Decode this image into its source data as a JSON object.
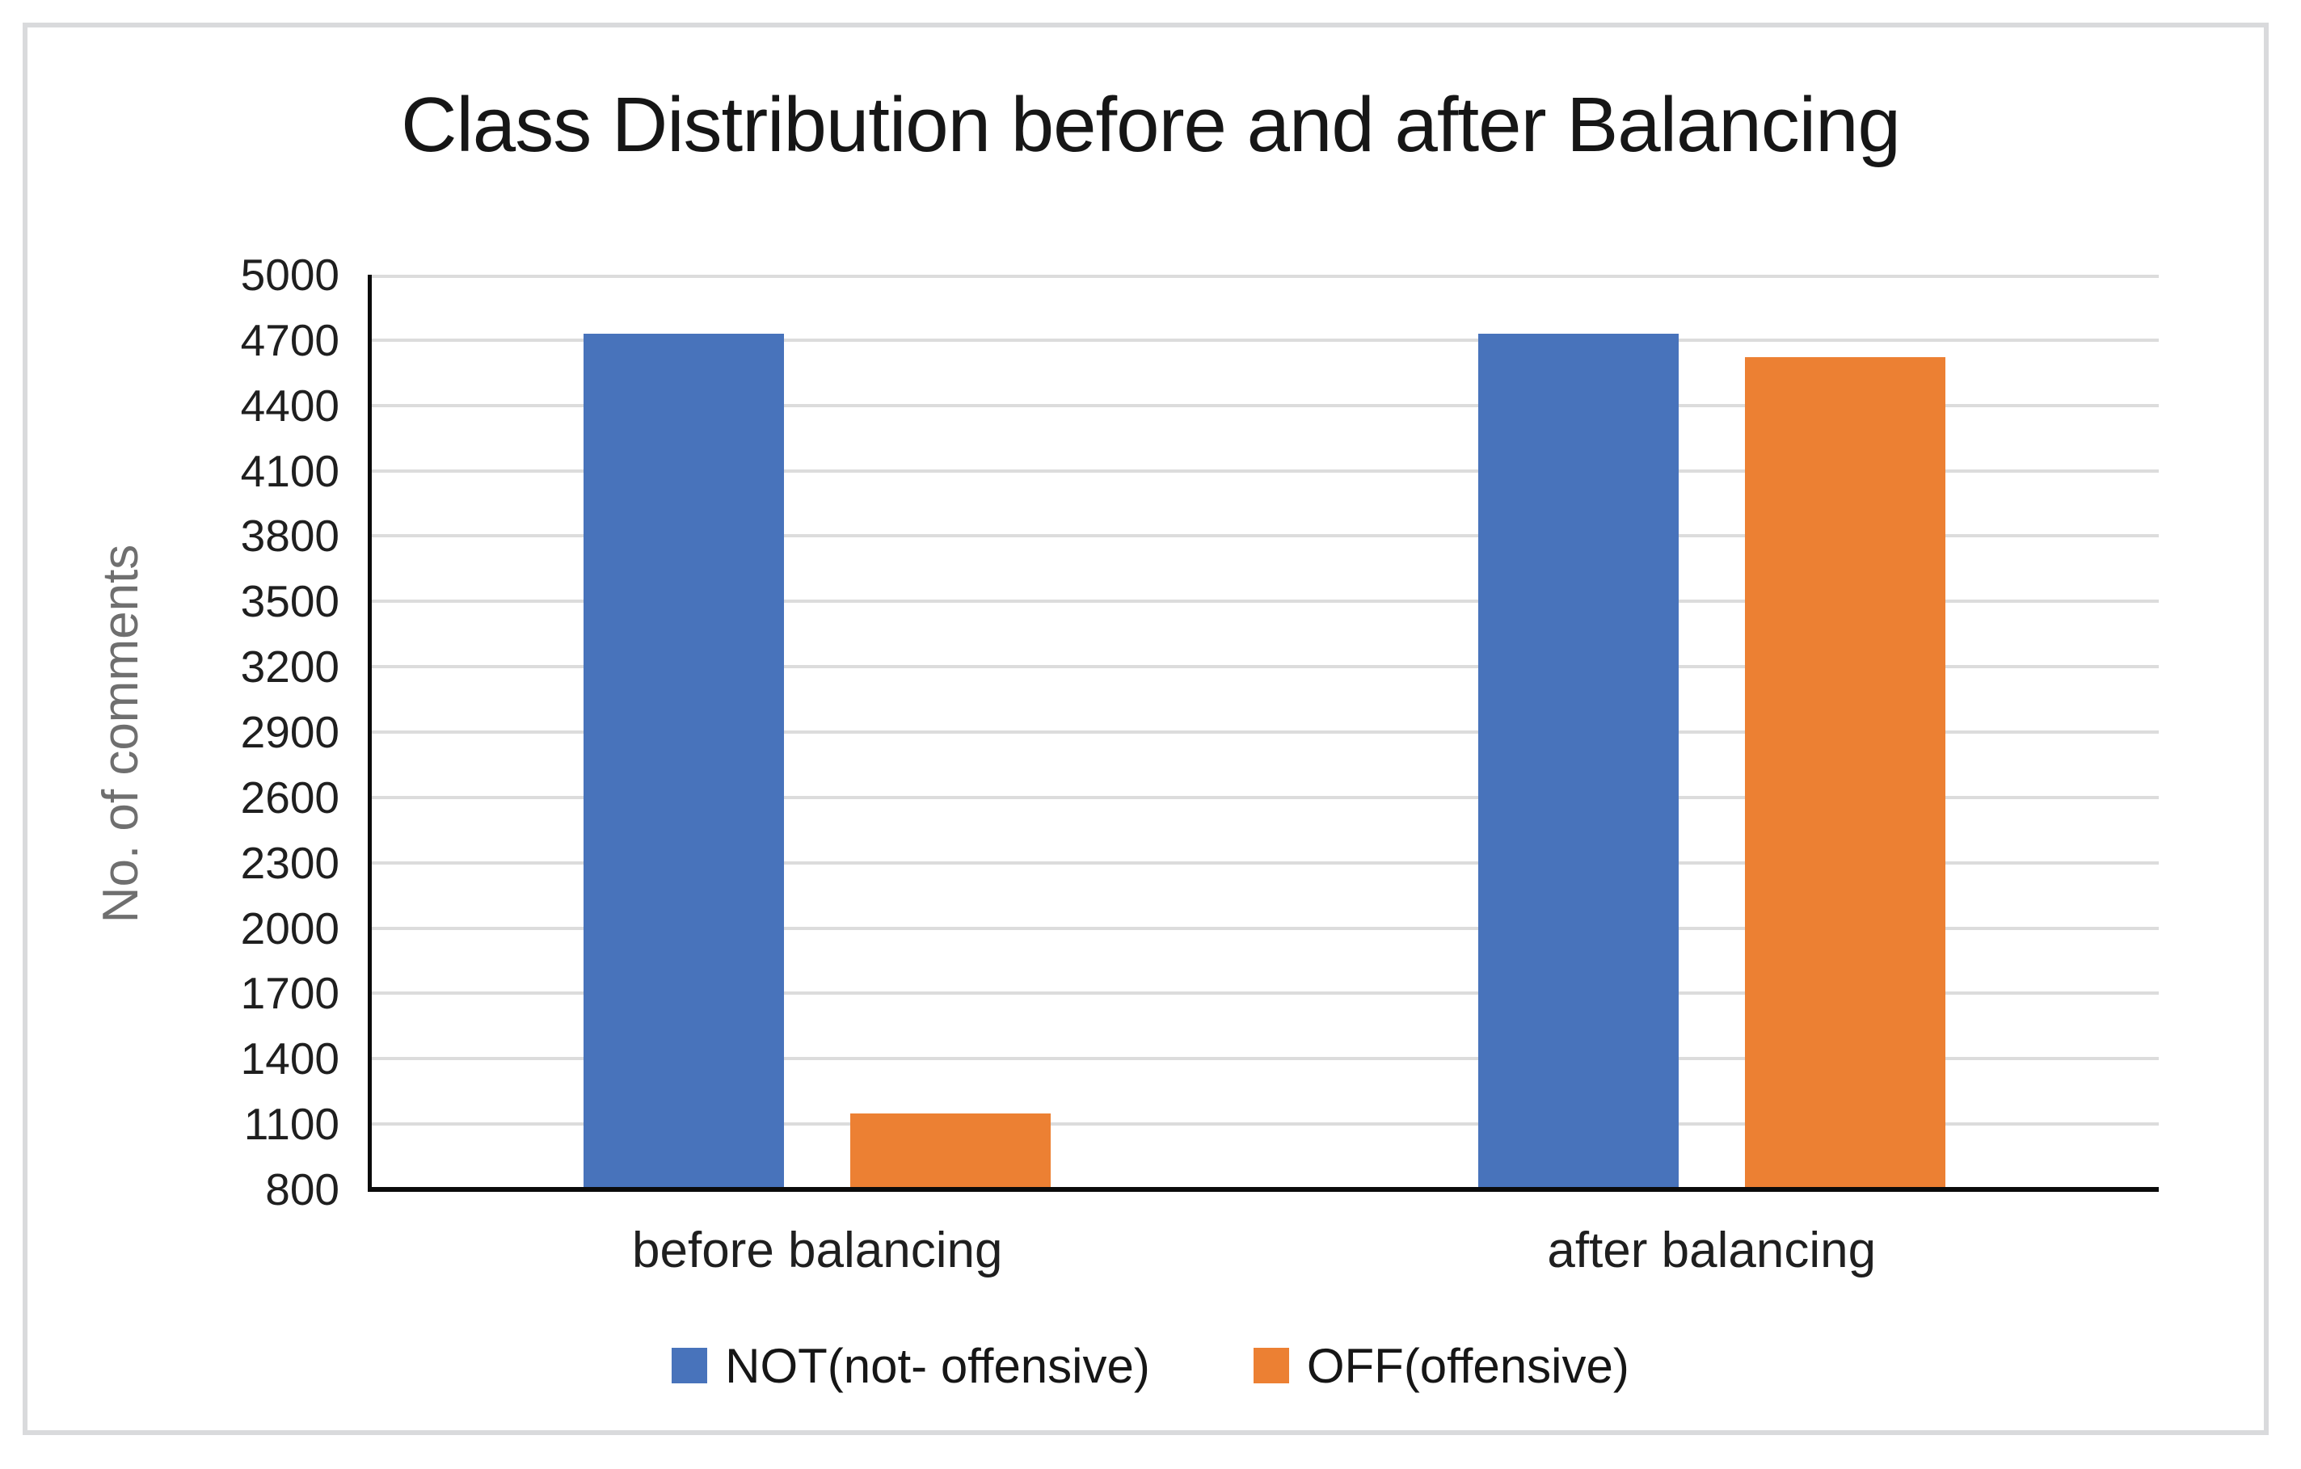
{
  "frame": {
    "border_color": "#d9dadc",
    "background_color": "#ffffff"
  },
  "chart_data": {
    "type": "bar",
    "title": "Class Distribution before and after Balancing",
    "xlabel": "",
    "ylabel": "No. of comments",
    "categories": [
      "before balancing",
      "after balancing"
    ],
    "series": [
      {
        "name": "NOT(not- offensive)",
        "color": "#4873BB",
        "values": [
          4730,
          4730
        ]
      },
      {
        "name": "OFF(offensive)",
        "color": "#EC8033",
        "values": [
          1150,
          4620
        ]
      }
    ],
    "ylim": [
      800,
      5000
    ],
    "ytick_step": 300,
    "yticks": [
      800,
      1100,
      1400,
      1700,
      2000,
      2300,
      2600,
      2900,
      3200,
      3500,
      3800,
      4100,
      4400,
      4700,
      5000
    ],
    "grid": "horizontal",
    "gridline_color": "#dcdcdc",
    "axis_color": "#0b0b0b",
    "tick_label_color": "#1f1f1f",
    "ylabel_color": "#6f6f6f",
    "legend_position": "bottom"
  }
}
